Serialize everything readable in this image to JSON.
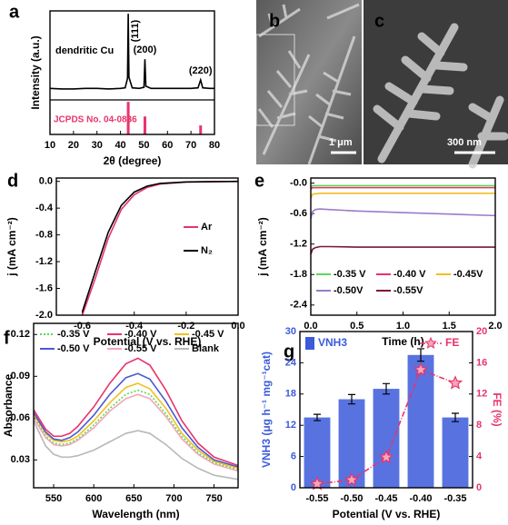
{
  "chart_data": [
    {
      "type": "line",
      "panel": "a",
      "xlabel": "2θ (degree)",
      "ylabel": "Intensity (a.u.)",
      "xlim": [
        10,
        80
      ],
      "xticks": [
        10,
        20,
        30,
        40,
        50,
        60,
        70,
        80
      ],
      "ylim": [
        0,
        220
      ],
      "x": [
        10,
        15,
        20,
        25,
        30,
        35,
        40,
        42,
        43,
        43.3,
        43.6,
        45,
        48,
        50,
        50.4,
        50.8,
        53,
        60,
        70,
        73,
        74.1,
        75,
        78,
        80
      ],
      "series": [
        {
          "name": "dendritic Cu",
          "color": "#000000",
          "values": [
            82,
            81,
            81,
            82,
            82,
            81,
            82,
            83,
            100,
            215,
            102,
            83,
            82,
            84,
            134,
            86,
            82,
            82,
            82,
            83,
            97,
            83,
            82,
            82
          ]
        }
      ],
      "peaks": [
        {
          "label": "(111)",
          "x": 43.3
        },
        {
          "label": "(200)",
          "x": 50.4
        },
        {
          "label": "(220)",
          "x": 74.1
        }
      ],
      "reference": {
        "name": "JCPDS No. 04-0836",
        "color": "#e8336b",
        "x": [
          43.3,
          50.4,
          74.1
        ],
        "values": [
          58,
          32,
          16
        ]
      }
    },
    {
      "type": "line",
      "panel": "d",
      "xlabel": "Potential (V vs. RHE)",
      "ylabel": "j (mA cm⁻²)",
      "xlim": [
        -0.7,
        0.0
      ],
      "xticks": [
        -0.6,
        -0.4,
        -0.2,
        {
          "value": 0,
          "label": "0.0"
        }
      ],
      "ylim": [
        -2.0,
        0.05
      ],
      "yticks": [
        {
          "value": -2,
          "label": "-2.0"
        },
        -1.6,
        -1.2,
        -0.8,
        -0.4,
        {
          "value": 0,
          "label": "0.0"
        }
      ],
      "x": [
        0,
        -0.1,
        -0.2,
        -0.3,
        -0.35,
        -0.4,
        -0.45,
        -0.5,
        -0.55,
        -0.6
      ],
      "series": [
        {
          "name": "Ar",
          "color": "#e8336b",
          "values": [
            0,
            -0.005,
            -0.01,
            -0.04,
            -0.09,
            -0.2,
            -0.42,
            -0.85,
            -1.45,
            -2.0
          ]
        },
        {
          "name": "N₂",
          "color": "#000000",
          "values": [
            0,
            -0.004,
            -0.008,
            -0.03,
            -0.07,
            -0.16,
            -0.36,
            -0.76,
            -1.35,
            -1.95
          ]
        }
      ]
    },
    {
      "type": "line",
      "panel": "e",
      "xlabel": "Time (h)",
      "ylabel": "j (mA cm⁻²)",
      "xlim": [
        0,
        2.0
      ],
      "xticks": [
        {
          "value": 0,
          "label": "0.0"
        },
        0.5,
        {
          "value": 1,
          "label": "1.0"
        },
        1.5,
        {
          "value": 2,
          "label": "2.0"
        }
      ],
      "ylim": [
        -2.6,
        0.1
      ],
      "yticks": [
        -2.4,
        -1.8,
        -1.2,
        -0.6,
        {
          "value": 0,
          "label": "-0.0"
        }
      ],
      "x": [
        0,
        0.02,
        0.05,
        0.1,
        0.2,
        0.5,
        1.0,
        1.5,
        2.0
      ],
      "series": [
        {
          "name": "-0.35 V",
          "color": "#58d858",
          "values": [
            -0.08,
            -0.05,
            -0.05,
            -0.05,
            -0.05,
            -0.05,
            -0.05,
            -0.05,
            -0.05
          ]
        },
        {
          "name": "-0.40 V",
          "color": "#e8336b",
          "values": [
            -0.12,
            -0.09,
            -0.09,
            -0.09,
            -0.09,
            -0.09,
            -0.09,
            -0.09,
            -0.09
          ]
        },
        {
          "name": "-0.45V",
          "color": "#f0c020",
          "values": [
            -0.3,
            -0.22,
            -0.21,
            -0.2,
            -0.2,
            -0.2,
            -0.2,
            -0.2,
            -0.2
          ]
        },
        {
          "name": "-0.50V",
          "color": "#9a7cc8",
          "values": [
            -0.7,
            -0.56,
            -0.52,
            -0.51,
            -0.52,
            -0.55,
            -0.58,
            -0.61,
            -0.64
          ]
        },
        {
          "name": "-0.55V",
          "color": "#7a1830",
          "values": [
            -1.4,
            -1.3,
            -1.27,
            -1.25,
            -1.25,
            -1.26,
            -1.26,
            -1.26,
            -1.26
          ]
        }
      ]
    },
    {
      "type": "line",
      "panel": "f",
      "xlabel": "Wavelength (nm)",
      "ylabel": "Absorbance",
      "xlim": [
        525,
        780
      ],
      "xticks": [
        550,
        600,
        650,
        700,
        750
      ],
      "ylim": [
        0.01,
        0.128
      ],
      "yticks": [
        0.03,
        0.06,
        0.09,
        0.12
      ],
      "x": [
        525,
        540,
        550,
        560,
        570,
        580,
        600,
        620,
        640,
        655,
        670,
        690,
        710,
        730,
        750,
        780
      ],
      "series": [
        {
          "name": "-0.35 V",
          "color": "#58d858",
          "style": "dotted",
          "values": [
            0.062,
            0.047,
            0.042,
            0.041,
            0.042,
            0.045,
            0.055,
            0.067,
            0.077,
            0.08,
            0.077,
            0.063,
            0.047,
            0.035,
            0.028,
            0.023
          ]
        },
        {
          "name": "-0.40 V",
          "color": "#e8336b",
          "values": [
            0.066,
            0.052,
            0.047,
            0.047,
            0.049,
            0.054,
            0.068,
            0.085,
            0.099,
            0.103,
            0.098,
            0.08,
            0.058,
            0.042,
            0.032,
            0.026
          ]
        },
        {
          "name": "-0.45 V",
          "color": "#f0c020",
          "values": [
            0.063,
            0.049,
            0.044,
            0.043,
            0.044,
            0.047,
            0.058,
            0.071,
            0.082,
            0.085,
            0.081,
            0.067,
            0.049,
            0.037,
            0.029,
            0.024
          ]
        },
        {
          "name": "-0.50 V",
          "color": "#4a5ad8",
          "values": [
            0.064,
            0.05,
            0.045,
            0.044,
            0.046,
            0.05,
            0.062,
            0.077,
            0.089,
            0.092,
            0.088,
            0.072,
            0.053,
            0.039,
            0.03,
            0.025
          ]
        },
        {
          "name": "-0.55 V",
          "color": "#f4a6b8",
          "values": [
            0.06,
            0.046,
            0.041,
            0.04,
            0.041,
            0.044,
            0.053,
            0.065,
            0.074,
            0.077,
            0.074,
            0.061,
            0.045,
            0.034,
            0.027,
            0.022
          ]
        },
        {
          "name": "Blank",
          "color": "#b8b8b8",
          "values": [
            0.058,
            0.04,
            0.034,
            0.032,
            0.032,
            0.033,
            0.037,
            0.043,
            0.049,
            0.051,
            0.049,
            0.041,
            0.031,
            0.024,
            0.019,
            0.016
          ]
        }
      ]
    },
    {
      "type": "bar",
      "panel": "g",
      "xlabel": "Potential (V vs. RHE)",
      "ylabel": "VNH3 (μg h⁻¹ mg⁻¹cat)",
      "y2label": "FE (%)",
      "categories": [
        "-0.55",
        "-0.50",
        "-0.45",
        "-0.40",
        "-0.35"
      ],
      "ylim": [
        0,
        30
      ],
      "yticks": [
        0,
        6,
        12,
        18,
        24,
        30
      ],
      "y2lim": [
        0,
        20
      ],
      "y2ticks": [
        0,
        4,
        8,
        12,
        16,
        20
      ],
      "series": [
        {
          "name": "VNH3",
          "color": "#3b5bdb",
          "values": [
            13.5,
            17,
            19,
            25.5,
            13.5
          ],
          "errors": [
            0.6,
            0.9,
            1.0,
            1.2,
            0.8
          ]
        },
        {
          "name": "FE",
          "color": "#e8336b",
          "axis": "y2",
          "marker": "star",
          "style": "dashdot",
          "values": [
            0.5,
            1.0,
            3.9,
            15.1,
            13.4
          ]
        }
      ]
    }
  ],
  "images": [
    {
      "panel": "b",
      "scale_bar": "1 μm"
    },
    {
      "panel": "c",
      "scale_bar": "300 nm"
    }
  ]
}
